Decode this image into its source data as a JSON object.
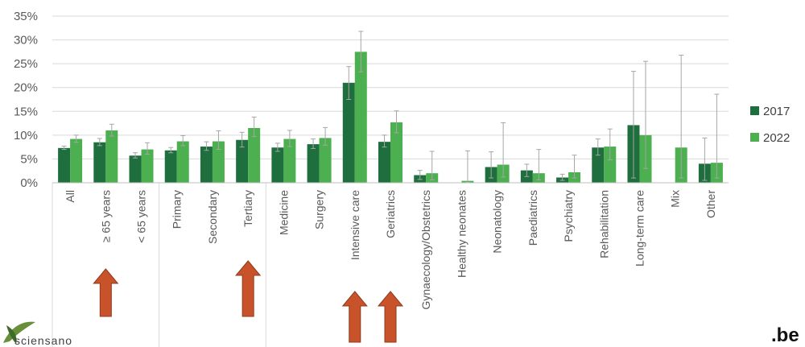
{
  "colors": {
    "series_2017": "#1f6e3e",
    "series_2022": "#4caf50",
    "arrow": "#c8522a",
    "grid": "#d9d9d9",
    "error_bar": "#a6a6a6"
  },
  "logo": {
    "text": "sciensano",
    "icon": "sciensano-leaf-icon"
  },
  "be_logo": {
    "text": ".be"
  },
  "chart_data": {
    "type": "bar",
    "title": "",
    "xlabel": "",
    "ylabel": "",
    "ylim": [
      0,
      35
    ],
    "y_ticks": [
      "0%",
      "5%",
      "10%",
      "15%",
      "20%",
      "25%",
      "30%",
      "35%"
    ],
    "y_tick_values": [
      0,
      5,
      10,
      15,
      20,
      25,
      30,
      35
    ],
    "grid": true,
    "legend_position": "right",
    "categories": [
      "All",
      "≥ 65 years",
      "< 65 years",
      "Primary",
      "Secondary",
      "Tertiary",
      "Medicine",
      "Surgery",
      "Intensive care",
      "Geriatrics",
      "Gynaecology/Obstetrics",
      "Healthy neonates",
      "Neonatology",
      "Paediatrics",
      "Psychiatry",
      "Rehabilitation",
      "Long-term care",
      "Mix",
      "Other"
    ],
    "group_separators_after": [
      2,
      5
    ],
    "series": [
      {
        "name": "2017",
        "values": [
          7.3,
          8.5,
          5.7,
          6.8,
          7.6,
          9.0,
          7.4,
          8.1,
          21.0,
          8.6,
          1.6,
          0,
          3.3,
          2.6,
          1.1,
          7.4,
          12.1,
          0,
          4.0
        ],
        "err_low": [
          7.0,
          7.8,
          5.2,
          6.3,
          6.8,
          7.5,
          6.6,
          7.2,
          17.5,
          7.5,
          0.7,
          0,
          1.0,
          1.3,
          0.5,
          5.8,
          1.0,
          0,
          0.5
        ],
        "err_high": [
          7.7,
          9.3,
          6.3,
          7.4,
          8.6,
          10.6,
          8.3,
          9.2,
          24.4,
          10.0,
          2.6,
          0,
          6.5,
          3.9,
          1.8,
          9.2,
          23.4,
          0,
          9.4
        ]
      },
      {
        "name": "2022",
        "values": [
          9.2,
          11.0,
          7.0,
          8.7,
          8.7,
          11.5,
          9.2,
          9.4,
          27.5,
          12.7,
          2.0,
          0.4,
          3.8,
          2.0,
          2.2,
          7.6,
          10.0,
          7.4,
          4.2
        ],
        "err_low": [
          8.5,
          9.8,
          6.0,
          7.8,
          7.0,
          9.7,
          7.6,
          7.9,
          23.3,
          10.5,
          0.6,
          0.1,
          1.2,
          0.6,
          1.0,
          4.8,
          3.0,
          1.0,
          1.0
        ],
        "err_high": [
          10.0,
          12.3,
          8.4,
          9.9,
          10.9,
          13.8,
          11.0,
          11.6,
          31.8,
          15.1,
          6.6,
          6.7,
          12.6,
          7.0,
          5.8,
          11.3,
          25.5,
          26.8,
          18.6
        ]
      }
    ],
    "arrows_under": [
      "≥ 65 years",
      "Tertiary",
      "Intensive care",
      "Geriatrics"
    ]
  }
}
